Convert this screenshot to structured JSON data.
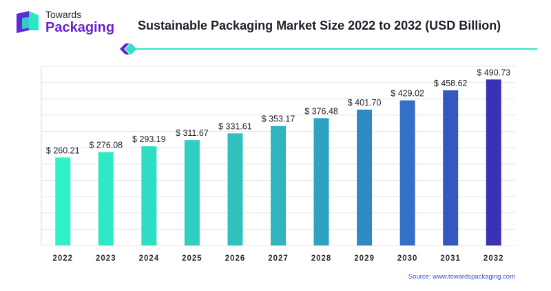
{
  "brand": {
    "line1": "Towards",
    "line2": "Packaging"
  },
  "chart_data": {
    "type": "bar",
    "title": "Sustainable Packaging Market Size 2022 to 2032 (USD Billion)",
    "xlabel": "",
    "ylabel": "",
    "categories": [
      "2022",
      "2023",
      "2024",
      "2025",
      "2026",
      "2027",
      "2028",
      "2029",
      "2030",
      "2031",
      "2032"
    ],
    "values": [
      260.21,
      276.08,
      293.19,
      311.67,
      331.61,
      353.17,
      376.48,
      401.7,
      429.02,
      458.62,
      490.73
    ],
    "value_labels": [
      "$ 260.21",
      "$ 276.08",
      "$ 293.19",
      "$ 311.67",
      "$ 331.61",
      "$ 353.17",
      "$ 376.48",
      "$ 401.70",
      "$ 429.02",
      "$ 458.62",
      "$ 490.73"
    ],
    "ylim": [
      0,
      530
    ],
    "grid": true,
    "legend": "none",
    "colors": [
      "#2ff2c8",
      "#2ee8c6",
      "#2fdcc4",
      "#30cfc2",
      "#31c2c0",
      "#30b4c0",
      "#2fa2c2",
      "#2f8ac4",
      "#3370c7",
      "#3656c2",
      "#3a32b6"
    ],
    "source": "Source: www.towardspackaging.com"
  },
  "accent_colors": {
    "teal": "#2fe3c3",
    "purple": "#6a1fd0"
  }
}
